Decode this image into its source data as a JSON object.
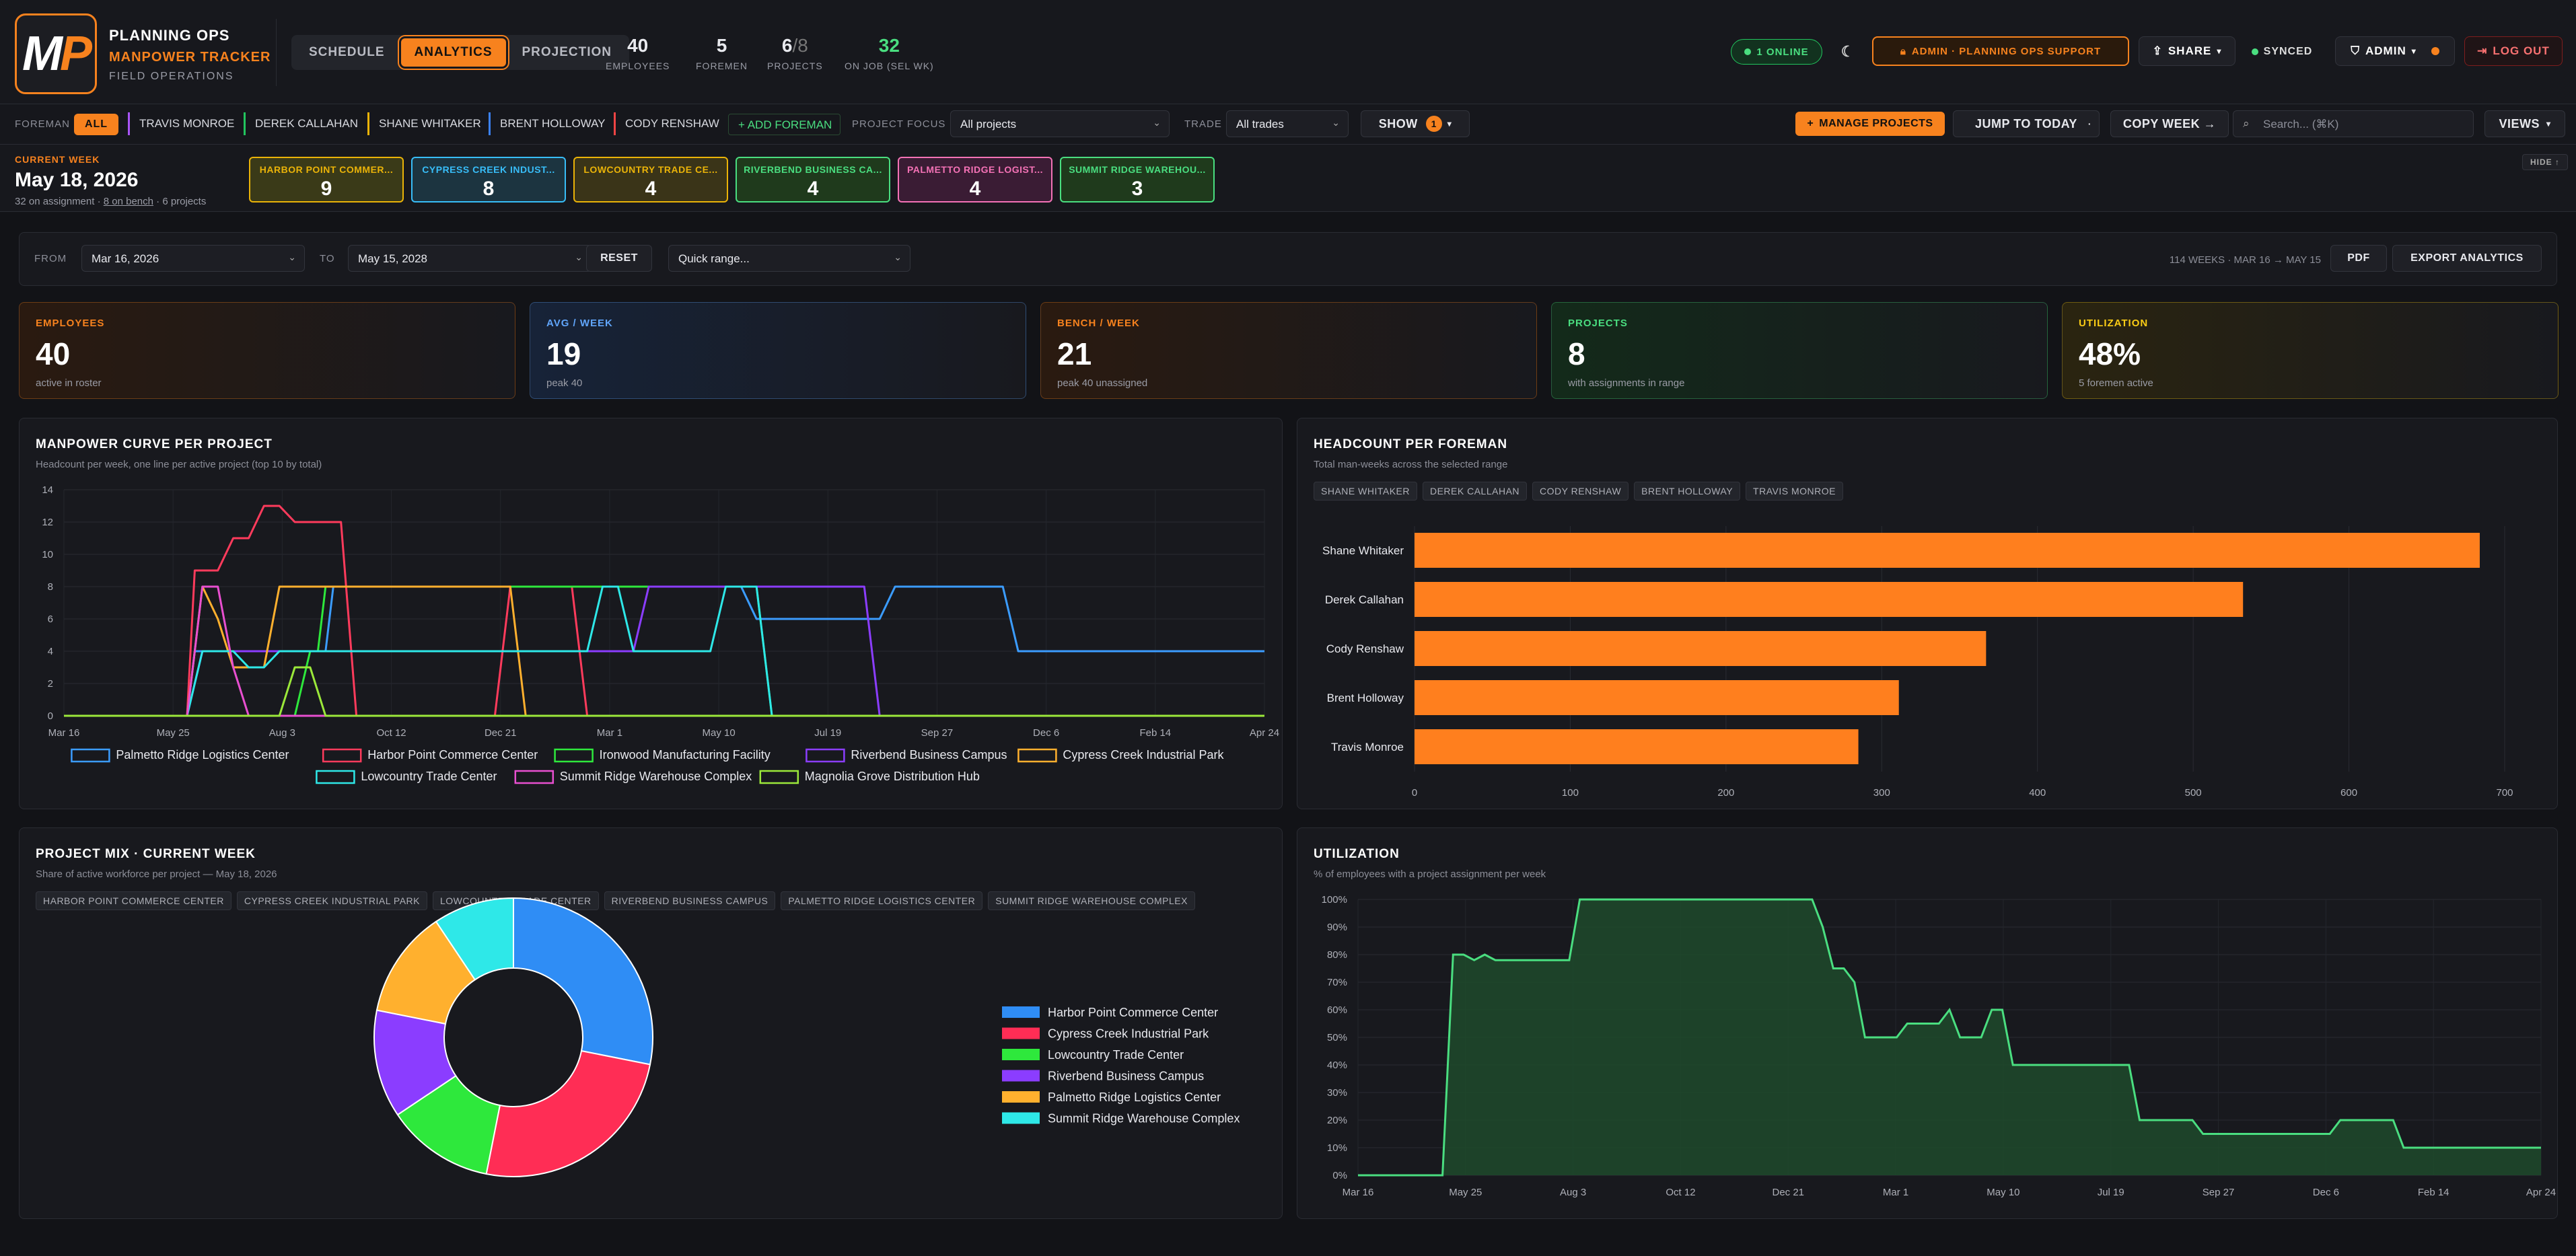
{
  "header": {
    "logo_text": "MP",
    "brand_title": "PLANNING OPS",
    "brand_sub": "MANPOWER TRACKER",
    "brand_tag": "FIELD OPERATIONS",
    "tabs": [
      {
        "label": "SCHEDULE"
      },
      {
        "label": "ANALYTICS"
      },
      {
        "label": "PROJECTION"
      }
    ],
    "stats": {
      "employees": {
        "value": "40",
        "label": "EMPLOYEES"
      },
      "foremen": {
        "value": "5",
        "label": "FOREMEN"
      },
      "projects": {
        "value": "6",
        "total": "/8",
        "label": "PROJECTS"
      },
      "onjob": {
        "value": "32",
        "label": "ON JOB (SEL WK)"
      }
    },
    "online": "1 ONLINE",
    "admin_badge": "ADMIN · PLANNING OPS SUPPORT",
    "share": "SHARE",
    "synced": "SYNCED",
    "admin": "ADMIN",
    "logout": "LOG OUT"
  },
  "filters": {
    "foreman_label": "FOREMAN",
    "all": "ALL",
    "foremen": [
      {
        "name": "TRAVIS MONROE",
        "color": "#a855f7"
      },
      {
        "name": "DEREK CALLAHAN",
        "color": "#22c55e"
      },
      {
        "name": "SHANE WHITAKER",
        "color": "#eab308"
      },
      {
        "name": "BRENT HOLLOWAY",
        "color": "#3b82f6"
      },
      {
        "name": "CODY RENSHAW",
        "color": "#ef4444"
      }
    ],
    "add_foreman": "+ ADD FOREMAN",
    "project_focus_label": "PROJECT FOCUS",
    "project_focus": "All projects",
    "trade_label": "TRADE",
    "trade": "All trades",
    "show": "SHOW",
    "show_count": "1",
    "manage": "MANAGE PROJECTS",
    "jump": "JUMP TO TODAY",
    "copy": "COPY WEEK →",
    "search_placeholder": "Search... (⌘K)",
    "views": "VIEWS"
  },
  "week": {
    "label": "CURRENT WEEK",
    "date": "May 18, 2026",
    "summary_a": "32 on assignment · ",
    "summary_b": "8 on bench",
    "summary_c": " · 6 projects",
    "hide": "HIDE ↑",
    "projects": [
      {
        "name": "HARBOR POINT COMMER...",
        "count": "9",
        "color": "#eab308"
      },
      {
        "name": "CYPRESS CREEK INDUST...",
        "count": "8",
        "color": "#38bdf8"
      },
      {
        "name": "LOWCOUNTRY TRADE CE...",
        "count": "4",
        "color": "#eab308"
      },
      {
        "name": "RIVERBEND BUSINESS CA...",
        "count": "4",
        "color": "#4ade80"
      },
      {
        "name": "PALMETTO RIDGE LOGIST...",
        "count": "4",
        "color": "#f472b6"
      },
      {
        "name": "SUMMIT RIDGE WAREHOU...",
        "count": "3",
        "color": "#4ade80"
      }
    ]
  },
  "range": {
    "from_label": "FROM",
    "from": "Mar 16, 2026",
    "to_label": "TO",
    "to": "May 15, 2028",
    "reset": "RESET",
    "quick": "Quick range...",
    "info": "114 WEEKS · MAR 16 → MAY 15",
    "pdf": "PDF",
    "export": "EXPORT ANALYTICS"
  },
  "kpis": [
    {
      "label": "EMPLOYEES",
      "value": "40",
      "sub": "active in roster",
      "color": "#f7821e"
    },
    {
      "label": "AVG / WEEK",
      "value": "19",
      "sub": "peak 40",
      "color": "#60a5fa"
    },
    {
      "label": "BENCH / WEEK",
      "value": "21",
      "sub": "peak 40 unassigned",
      "color": "#f7821e"
    },
    {
      "label": "PROJECTS",
      "value": "8",
      "sub": "with assignments in range",
      "color": "#4ade80"
    },
    {
      "label": "UTILIZATION",
      "value": "48%",
      "sub": "5 foremen active",
      "color": "#facc15"
    }
  ],
  "manpower": {
    "title": "MANPOWER CURVE PER PROJECT",
    "subtitle": "Headcount per week, one line per active project (top 10 by total)"
  },
  "foreman_chart": {
    "title": "HEADCOUNT PER FOREMAN",
    "subtitle": "Total man-weeks across the selected range",
    "tags": [
      "SHANE WHITAKER",
      "DEREK CALLAHAN",
      "CODY RENSHAW",
      "BRENT HOLLOWAY",
      "TRAVIS MONROE"
    ]
  },
  "mix": {
    "title": "PROJECT MIX · CURRENT WEEK",
    "subtitle": "Share of active workforce per project — May 18, 2026",
    "tags": [
      "HARBOR POINT COMMERCE CENTER",
      "CYPRESS CREEK INDUSTRIAL PARK",
      "LOWCOUNTRY TRADE CENTER",
      "RIVERBEND BUSINESS CAMPUS",
      "PALMETTO RIDGE LOGISTICS CENTER",
      "SUMMIT RIDGE WAREHOUSE COMPLEX"
    ]
  },
  "util": {
    "title": "UTILIZATION",
    "subtitle": "% of employees with a project assignment per week"
  },
  "chart_data": [
    {
      "type": "line",
      "x": [
        "Mar 16",
        "May 25",
        "Aug 3",
        "Oct 12",
        "Dec 21",
        "Mar 1",
        "May 10",
        "Jul 19",
        "Sep 27",
        "Dec 6",
        "Feb 14",
        "Apr 24"
      ],
      "ylim": [
        0,
        14
      ],
      "yticks": [
        0,
        2,
        4,
        6,
        8,
        10,
        12,
        14
      ],
      "series": [
        {
          "name": "Palmetto Ridge Logistics Center",
          "color": "#3b9cff",
          "points": [
            [
              0,
              0
            ],
            [
              8,
              0
            ],
            [
              8.5,
              4
            ],
            [
              17,
              4
            ],
            [
              17.5,
              8
            ],
            [
              28,
              8
            ],
            [
              29,
              8
            ],
            [
              44,
              8
            ],
            [
              45,
              6
            ],
            [
              53,
              6
            ],
            [
              54,
              8
            ],
            [
              61,
              8
            ],
            [
              62,
              4
            ],
            [
              78,
              4
            ]
          ]
        },
        {
          "name": "Harbor Point Commerce Center",
          "color": "#ff3b5c",
          "points": [
            [
              0,
              0
            ],
            [
              8,
              0
            ],
            [
              8.5,
              9
            ],
            [
              10,
              9
            ],
            [
              11,
              11
            ],
            [
              12,
              11
            ],
            [
              13,
              13
            ],
            [
              14,
              13
            ],
            [
              15,
              12
            ],
            [
              18,
              12
            ],
            [
              19,
              0
            ],
            [
              28,
              0
            ],
            [
              29,
              8
            ],
            [
              33,
              8
            ],
            [
              34,
              0
            ],
            [
              78,
              0
            ]
          ]
        },
        {
          "name": "Ironwood Manufacturing Facility",
          "color": "#2ee83c",
          "points": [
            [
              0,
              0
            ],
            [
              15,
              0
            ],
            [
              16,
              4
            ],
            [
              16.5,
              4
            ],
            [
              17,
              8
            ],
            [
              45,
              8
            ],
            [
              46,
              0
            ],
            [
              78,
              0
            ]
          ]
        },
        {
          "name": "Riverbend Business Campus",
          "color": "#8b3dff",
          "points": [
            [
              0,
              0
            ],
            [
              8,
              0
            ],
            [
              9,
              4
            ],
            [
              37,
              4
            ],
            [
              38,
              8
            ],
            [
              52,
              8
            ],
            [
              53,
              0
            ],
            [
              78,
              0
            ]
          ]
        },
        {
          "name": "Cypress Creek Industrial Park",
          "color": "#ffb02e",
          "points": [
            [
              0,
              0
            ],
            [
              8,
              0
            ],
            [
              9,
              8
            ],
            [
              10,
              6
            ],
            [
              11,
              3
            ],
            [
              13,
              3
            ],
            [
              14,
              8
            ],
            [
              29,
              8
            ],
            [
              30,
              0
            ],
            [
              78,
              0
            ]
          ]
        },
        {
          "name": "Lowcountry Trade Center",
          "color": "#2ee8e8",
          "points": [
            [
              0,
              0
            ],
            [
              8,
              0
            ],
            [
              9,
              4
            ],
            [
              11,
              4
            ],
            [
              12,
              3
            ],
            [
              13,
              3
            ],
            [
              14,
              4
            ],
            [
              34,
              4
            ],
            [
              35,
              8
            ],
            [
              36,
              8
            ],
            [
              37,
              4
            ],
            [
              42,
              4
            ],
            [
              43,
              8
            ],
            [
              45,
              8
            ],
            [
              46,
              0
            ],
            [
              78,
              0
            ]
          ]
        },
        {
          "name": "Summit Ridge Warehouse Complex",
          "color": "#e84fd0",
          "points": [
            [
              0,
              0
            ],
            [
              8,
              0
            ],
            [
              9,
              8
            ],
            [
              10,
              8
            ],
            [
              11,
              3
            ],
            [
              12,
              0
            ],
            [
              78,
              0
            ]
          ]
        },
        {
          "name": "Magnolia Grove Distribution Hub",
          "color": "#9be83a",
          "points": [
            [
              0,
              0
            ],
            [
              14,
              0
            ],
            [
              15,
              3
            ],
            [
              16,
              3
            ],
            [
              17,
              0
            ],
            [
              78,
              0
            ]
          ]
        }
      ]
    },
    {
      "type": "bar",
      "orientation": "horizontal",
      "categories": [
        "Shane Whitaker",
        "Derek Callahan",
        "Cody Renshaw",
        "Brent Holloway",
        "Travis Monroe"
      ],
      "values": [
        684,
        532,
        367,
        311,
        285
      ],
      "xlim": [
        0,
        700
      ],
      "xticks": [
        0,
        100,
        200,
        300,
        400,
        500,
        600,
        700
      ]
    },
    {
      "type": "pie",
      "donut": true,
      "categories": [
        "Harbor Point Commerce Center",
        "Cypress Creek Industrial Park",
        "Lowcountry Trade Center",
        "Riverbend Business Campus",
        "Palmetto Ridge Logistics Center",
        "Summit Ridge Warehouse Complex"
      ],
      "values": [
        9,
        8,
        4,
        4,
        4,
        3
      ],
      "colors": [
        "#2f8df5",
        "#ff2d55",
        "#2ee83c",
        "#8b3dff",
        "#ffb02e",
        "#2ee8e8"
      ]
    },
    {
      "type": "area",
      "x": [
        "Mar 16",
        "May 25",
        "Aug 3",
        "Oct 12",
        "Dec 21",
        "Mar 1",
        "May 10",
        "Jul 19",
        "Sep 27",
        "Dec 6",
        "Feb 14",
        "Apr 24"
      ],
      "ylim": [
        0,
        100
      ],
      "yticks": [
        "0%",
        "10%",
        "20%",
        "30%",
        "40%",
        "50%",
        "60%",
        "70%",
        "80%",
        "90%",
        "100%"
      ],
      "points": [
        [
          0,
          0
        ],
        [
          8,
          0
        ],
        [
          9,
          80
        ],
        [
          10,
          80
        ],
        [
          11,
          78
        ],
        [
          12,
          80
        ],
        [
          13,
          78
        ],
        [
          20,
          78
        ],
        [
          21,
          100
        ],
        [
          43,
          100
        ],
        [
          44,
          90
        ],
        [
          45,
          75
        ],
        [
          46,
          75
        ],
        [
          47,
          70
        ],
        [
          48,
          50
        ],
        [
          51,
          50
        ],
        [
          52,
          55
        ],
        [
          55,
          55
        ],
        [
          56,
          60
        ],
        [
          57,
          50
        ],
        [
          59,
          50
        ],
        [
          60,
          60
        ],
        [
          61,
          60
        ],
        [
          62,
          40
        ],
        [
          73,
          40
        ],
        [
          74,
          20
        ],
        [
          79,
          20
        ],
        [
          80,
          15
        ],
        [
          92,
          15
        ],
        [
          93,
          20
        ],
        [
          98,
          20
        ],
        [
          99,
          10
        ],
        [
          112,
          10
        ]
      ],
      "color": "#4ade80"
    }
  ]
}
